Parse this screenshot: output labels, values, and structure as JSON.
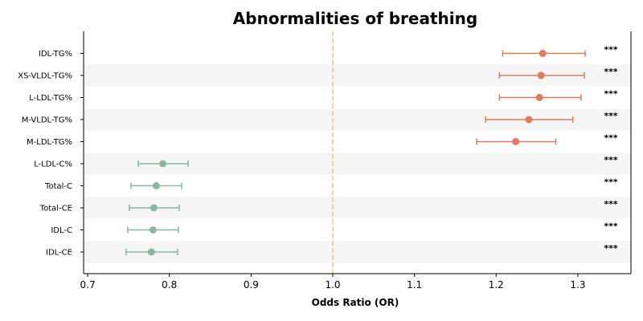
{
  "chart_data": {
    "type": "forest",
    "title": "Abnormalities of breathing",
    "xlabel": "Odds Ratio (OR)",
    "xlim": [
      0.695,
      1.365
    ],
    "xticks": [
      0.7,
      0.8,
      0.9,
      1.0,
      1.1,
      1.2,
      1.3
    ],
    "xtick_labels": [
      "0.7",
      "0.8",
      "0.9",
      "1.0",
      "1.1",
      "1.2",
      "1.3"
    ],
    "reference_line": 1.0,
    "colors": {
      "positive": "#e07b5a",
      "negative": "#86b99c",
      "reference": "#f5c27a",
      "band": "#f5f5f5"
    },
    "rows": [
      {
        "label": "IDL-TG%",
        "or": 1.257,
        "lo": 1.208,
        "hi": 1.309,
        "sig": "***"
      },
      {
        "label": "XS-VLDL-TG%",
        "or": 1.255,
        "lo": 1.204,
        "hi": 1.308,
        "sig": "***"
      },
      {
        "label": "L-LDL-TG%",
        "or": 1.253,
        "lo": 1.204,
        "hi": 1.304,
        "sig": "***"
      },
      {
        "label": "M-VLDL-TG%",
        "or": 1.24,
        "lo": 1.187,
        "hi": 1.294,
        "sig": "***"
      },
      {
        "label": "M-LDL-TG%",
        "or": 1.224,
        "lo": 1.176,
        "hi": 1.273,
        "sig": "***"
      },
      {
        "label": "L-LDL-C%",
        "or": 0.792,
        "lo": 0.762,
        "hi": 0.823,
        "sig": "***"
      },
      {
        "label": "Total-C",
        "or": 0.784,
        "lo": 0.753,
        "hi": 0.815,
        "sig": "***"
      },
      {
        "label": "Total-CE",
        "or": 0.781,
        "lo": 0.751,
        "hi": 0.812,
        "sig": "***"
      },
      {
        "label": "IDL-C",
        "or": 0.78,
        "lo": 0.749,
        "hi": 0.811,
        "sig": "***"
      },
      {
        "label": "IDL-CE",
        "or": 0.778,
        "lo": 0.747,
        "hi": 0.81,
        "sig": "***"
      }
    ]
  }
}
